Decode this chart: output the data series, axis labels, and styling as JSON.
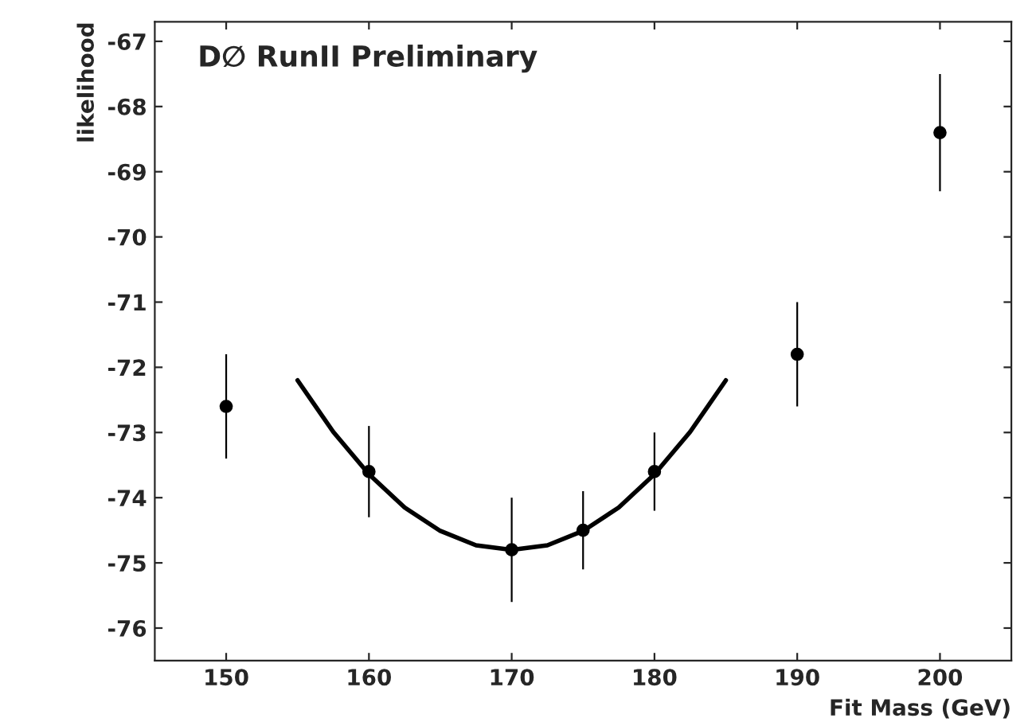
{
  "chart_data": {
    "type": "scatter",
    "xlabel": "Fit Mass (GeV)",
    "ylabel": "likelihood",
    "annotations": [
      "D∅ RunII Preliminary"
    ],
    "xlim": [
      145,
      205
    ],
    "xticks": [
      150,
      160,
      170,
      180,
      190,
      200
    ],
    "ylim": [
      -76.5,
      -66.7
    ],
    "yticks": [
      -76,
      -75,
      -74,
      -73,
      -72,
      -71,
      -70,
      -69,
      -68,
      -67
    ],
    "grid": false,
    "marker": "circle",
    "series": [
      {
        "color": "#000000",
        "x": [
          150,
          160,
          170,
          175,
          180,
          190,
          200
        ],
        "values": [
          -72.6,
          -73.6,
          -74.8,
          -74.5,
          -73.6,
          -71.8,
          -68.4
        ],
        "errors": [
          0.8,
          0.7,
          0.8,
          0.6,
          0.6,
          0.8,
          0.9
        ]
      },
      {
        "type": "line",
        "color": "#000000",
        "marker": "none",
        "line_style": "solid",
        "x": [
          155,
          157.5,
          160,
          162.5,
          165,
          167.5,
          170,
          172.5,
          175,
          177.5,
          180,
          182.5,
          185
        ],
        "values": [
          -72.2,
          -72.99,
          -73.64,
          -74.15,
          -74.51,
          -74.73,
          -74.8,
          -74.73,
          -74.51,
          -74.15,
          -73.64,
          -72.99,
          -72.2
        ]
      }
    ]
  }
}
